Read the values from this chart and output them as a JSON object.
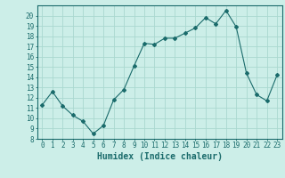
{
  "x": [
    0,
    1,
    2,
    3,
    4,
    5,
    6,
    7,
    8,
    9,
    10,
    11,
    12,
    13,
    14,
    15,
    16,
    17,
    18,
    19,
    20,
    21,
    22,
    23
  ],
  "y": [
    11.3,
    12.6,
    11.2,
    10.3,
    9.7,
    8.5,
    9.3,
    11.8,
    12.8,
    15.1,
    17.3,
    17.2,
    17.8,
    17.8,
    18.3,
    18.8,
    19.8,
    19.2,
    20.5,
    18.9,
    14.4,
    12.3,
    11.7,
    14.2
  ],
  "line_color": "#1a6b6b",
  "marker": "D",
  "marker_size": 2,
  "bg_color": "#cceee8",
  "grid_color": "#aad8d0",
  "xlabel": "Humidex (Indice chaleur)",
  "ylim": [
    8,
    21
  ],
  "xlim": [
    -0.5,
    23.5
  ],
  "yticks": [
    8,
    9,
    10,
    11,
    12,
    13,
    14,
    15,
    16,
    17,
    18,
    19,
    20
  ],
  "xticks": [
    0,
    1,
    2,
    3,
    4,
    5,
    6,
    7,
    8,
    9,
    10,
    11,
    12,
    13,
    14,
    15,
    16,
    17,
    18,
    19,
    20,
    21,
    22,
    23
  ],
  "tick_label_size": 5.5,
  "xlabel_size": 7,
  "tick_color": "#1a6b6b",
  "axis_color": "#1a6b6b"
}
